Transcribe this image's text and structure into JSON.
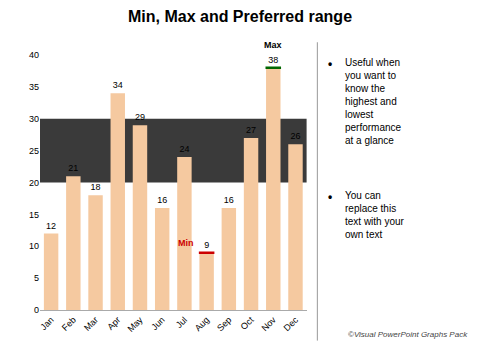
{
  "chart_data": {
    "type": "bar",
    "title": "Min, Max and Preferred range",
    "categories": [
      "Jan",
      "Feb",
      "Mar",
      "Apr",
      "May",
      "Jun",
      "Jul",
      "Aug",
      "Sep",
      "Oct",
      "Nov",
      "Dec"
    ],
    "values": [
      12,
      21,
      18,
      34,
      29,
      16,
      24,
      9,
      16,
      27,
      38,
      26
    ],
    "color": "#F5C9A0",
    "data_labels": true,
    "ylim": [
      0,
      40
    ],
    "yticks": [
      0,
      5,
      10,
      15,
      20,
      25,
      30,
      35,
      40
    ],
    "grid": false,
    "preferred_range": {
      "range": [
        20,
        30
      ],
      "color": "#3A3A3A"
    },
    "markers": [
      {
        "label": "Min",
        "category": "Aug",
        "value": 9,
        "color": "#CC0000",
        "label_color": "#CC0000"
      },
      {
        "label": "Max",
        "category": "Nov",
        "value": 38,
        "color": "#006600"
      }
    ],
    "bullet": "•",
    "side_notes": [
      "Useful when\nyou want to\nknow the\nhighest and\nlowest\nperformance\nat a glance",
      "You can\nreplace this\ntext with your\nown text"
    ],
    "copyright": "©Visual PowerPoint Graphs Pack"
  }
}
